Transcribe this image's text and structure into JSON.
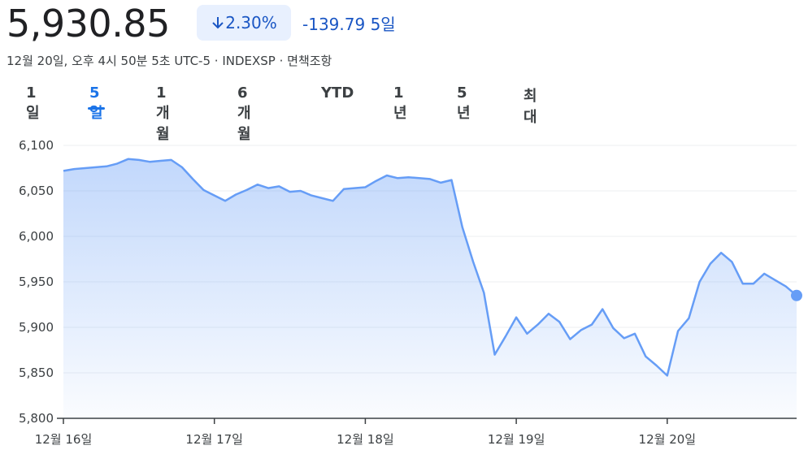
{
  "header": {
    "price": "5,930.85",
    "change_percent": "2.30%",
    "change": "-139.79",
    "period": "5일",
    "subtitle": "12월 20일, 오후 4시 50분 5초 UTC-5 · INDEXSP · 면책조항"
  },
  "tabs": {
    "items": [
      "1일",
      "5일",
      "1개월",
      "6개월",
      "YTD",
      "1년",
      "5년",
      "최대"
    ],
    "active": 1
  },
  "chart_data": {
    "type": "area",
    "color": "#669df6",
    "grid": true,
    "categories": [
      "12월 16일",
      null,
      null,
      null,
      null,
      null,
      null,
      null,
      null,
      null,
      null,
      null,
      null,
      null,
      "12월 17일",
      null,
      null,
      null,
      null,
      null,
      null,
      null,
      null,
      null,
      null,
      null,
      null,
      null,
      "12월 18일",
      null,
      null,
      null,
      null,
      null,
      null,
      null,
      null,
      null,
      null,
      null,
      null,
      null,
      "12월 19일",
      null,
      null,
      null,
      null,
      null,
      null,
      null,
      null,
      null,
      null,
      null,
      null,
      null,
      "12월 20일",
      null,
      null,
      null,
      null,
      null,
      null,
      null,
      null,
      null,
      null,
      null,
      null
    ],
    "values": [
      6072,
      6074,
      6075,
      6076,
      6077,
      6080,
      6085,
      6084,
      6082,
      6083,
      6084,
      6076,
      6063,
      6051,
      6045,
      6039,
      6046,
      6051,
      6057,
      6053,
      6055,
      6049,
      6050,
      6045,
      6042,
      6039,
      6052,
      6053,
      6054,
      6061,
      6067,
      6064,
      6065,
      6064,
      6063,
      6059,
      6062,
      6010,
      5972,
      5938,
      5870,
      5890,
      5911,
      5893,
      5903,
      5915,
      5906,
      5887,
      5897,
      5903,
      5920,
      5899,
      5888,
      5893,
      5868,
      5858,
      5847,
      5896,
      5910,
      5950,
      5970,
      5982,
      5972,
      5948,
      5948,
      5959,
      5952,
      5945,
      5935
    ],
    "ylim": [
      5800,
      6100
    ],
    "yticks": [
      {
        "value": 5800,
        "label": "5,800"
      },
      {
        "value": 5850,
        "label": "5,850"
      },
      {
        "value": 5900,
        "label": "5,900"
      },
      {
        "value": 5950,
        "label": "5,950"
      },
      {
        "value": 6000,
        "label": "6,000"
      },
      {
        "value": 6050,
        "label": "6,050"
      },
      {
        "value": 6100,
        "label": "6,100"
      }
    ]
  }
}
